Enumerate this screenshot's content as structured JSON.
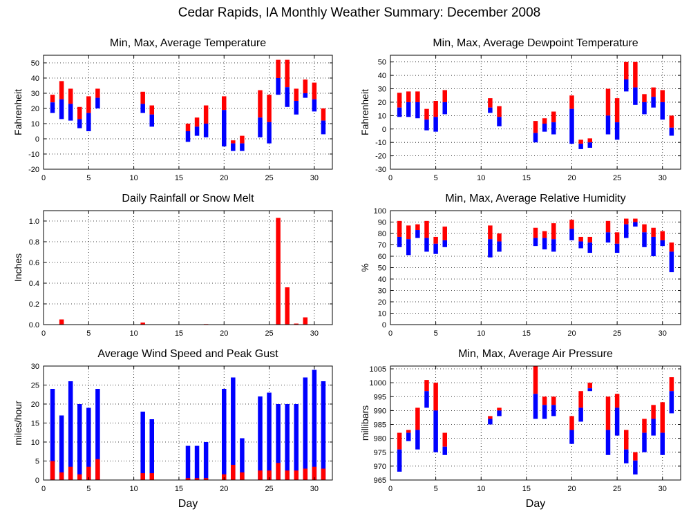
{
  "page_title": "Cedar Rapids, IA Monthly Weather Summary: December 2008",
  "colors": {
    "high": "#ff0000",
    "low": "#0000ff",
    "axis": "#000000",
    "grid": "#000000"
  },
  "chart_data": [
    {
      "id": "temp",
      "type": "floating-bar",
      "title": "Min, Max, Average Temperature",
      "xlabel": "",
      "ylabel": "Fahrenheit",
      "xlim": [
        0,
        32
      ],
      "ylim": [
        -20,
        55
      ],
      "xticks": [
        0,
        5,
        10,
        15,
        20,
        25,
        30
      ],
      "yticks": [
        -20,
        -10,
        0,
        10,
        20,
        30,
        40,
        50
      ],
      "grid": true,
      "days": [
        1,
        2,
        3,
        4,
        5,
        6,
        11,
        12,
        16,
        17,
        18,
        20,
        21,
        22,
        24,
        25,
        26,
        27,
        28,
        29,
        30,
        31
      ],
      "min": [
        17,
        13,
        12,
        7,
        5,
        20,
        17,
        8,
        -2,
        2,
        1,
        -5,
        -8,
        -8,
        1,
        -3,
        29,
        21,
        16,
        27,
        18,
        3
      ],
      "avg": [
        24,
        26,
        23,
        13,
        17,
        27,
        23,
        16,
        5,
        8,
        10,
        19,
        -3,
        -3,
        14,
        11,
        40,
        34,
        25,
        30,
        26,
        12
      ],
      "max": [
        29,
        38,
        33,
        21,
        28,
        33,
        31,
        22,
        10,
        14,
        22,
        28,
        -1,
        2,
        32,
        29,
        52,
        52,
        33,
        39,
        37,
        20
      ]
    },
    {
      "id": "dewpoint",
      "type": "floating-bar",
      "title": "Min, Max, Average Dewpoint Temperature",
      "xlabel": "",
      "ylabel": "Fahrenheit",
      "xlim": [
        0,
        32
      ],
      "ylim": [
        -30,
        55
      ],
      "xticks": [
        0,
        5,
        10,
        15,
        20,
        25,
        30
      ],
      "yticks": [
        -30,
        -20,
        -10,
        0,
        10,
        20,
        30,
        40,
        50
      ],
      "grid": true,
      "days": [
        1,
        2,
        3,
        4,
        5,
        6,
        11,
        12,
        16,
        17,
        18,
        20,
        21,
        22,
        24,
        25,
        26,
        27,
        28,
        29,
        30,
        31
      ],
      "min": [
        9,
        9,
        8,
        -1,
        -2,
        11,
        12,
        2,
        -10,
        -2,
        -4,
        -11,
        -15,
        -14,
        -4,
        -8,
        28,
        18,
        11,
        16,
        7,
        -5
      ],
      "avg": [
        16,
        20,
        20,
        7,
        9,
        20,
        16,
        9,
        -3,
        4,
        5,
        15,
        -11,
        -10,
        10,
        5,
        37,
        31,
        20,
        24,
        20,
        1
      ],
      "max": [
        27,
        28,
        28,
        15,
        21,
        29,
        23,
        17,
        6,
        8,
        13,
        25,
        -8,
        -7,
        30,
        23,
        50,
        50,
        26,
        31,
        29,
        10
      ]
    },
    {
      "id": "precip",
      "type": "bar",
      "title": "Daily Rainfall or Snow Melt",
      "xlabel": "",
      "ylabel": "Inches",
      "xlim": [
        0,
        32
      ],
      "ylim": [
        0,
        1.1
      ],
      "xticks": [
        0,
        5,
        10,
        15,
        20,
        25,
        30
      ],
      "yticks": [
        0.0,
        0.2,
        0.4,
        0.6,
        0.8,
        1.0
      ],
      "ytick_labels": [
        "0.0",
        "0.2",
        "0.4",
        "0.6",
        "0.8",
        "1.0"
      ],
      "grid": true,
      "days": [
        2,
        11,
        18,
        26,
        27,
        28,
        29
      ],
      "values": [
        0.05,
        0.02,
        0.005,
        1.03,
        0.36,
        0.01,
        0.07
      ]
    },
    {
      "id": "rh",
      "type": "floating-bar",
      "title": "Min, Max, Average Relative Humidity",
      "xlabel": "",
      "ylabel": "%",
      "xlim": [
        0,
        32
      ],
      "ylim": [
        0,
        100
      ],
      "xticks": [
        0,
        5,
        10,
        15,
        20,
        25,
        30
      ],
      "yticks": [
        0,
        10,
        20,
        30,
        40,
        50,
        60,
        70,
        80,
        90,
        100
      ],
      "grid": true,
      "days": [
        1,
        2,
        3,
        4,
        5,
        6,
        11,
        12,
        16,
        17,
        18,
        20,
        21,
        22,
        24,
        25,
        26,
        27,
        28,
        29,
        30,
        31
      ],
      "min": [
        68,
        61,
        76,
        64,
        62,
        68,
        59,
        64,
        69,
        66,
        64,
        74,
        67,
        63,
        72,
        63,
        76,
        86,
        68,
        60,
        69,
        46
      ],
      "avg": [
        77,
        75,
        83,
        76,
        71,
        74,
        75,
        73,
        76,
        76,
        75,
        84,
        73,
        72,
        81,
        71,
        88,
        90,
        81,
        77,
        74,
        64
      ],
      "max": [
        91,
        87,
        88,
        91,
        77,
        86,
        87,
        80,
        85,
        82,
        89,
        92,
        77,
        77,
        91,
        81,
        93,
        93,
        88,
        85,
        82,
        72
      ]
    },
    {
      "id": "wind",
      "type": "bar",
      "title": "Average Wind Speed and Peak Gust",
      "xlabel": "Day",
      "ylabel": "miles/hour",
      "xlim": [
        0,
        32
      ],
      "ylim": [
        0,
        30
      ],
      "xticks": [
        0,
        5,
        10,
        15,
        20,
        25,
        30
      ],
      "yticks": [
        0,
        5,
        10,
        15,
        20,
        25,
        30
      ],
      "grid": true,
      "days": [
        1,
        2,
        3,
        4,
        5,
        6,
        11,
        12,
        16,
        17,
        18,
        20,
        21,
        22,
        24,
        25,
        26,
        27,
        28,
        29,
        30,
        31
      ],
      "avg_speed": [
        5,
        2,
        3.5,
        1.5,
        3.5,
        5.5,
        1.8,
        1.8,
        0.5,
        0.5,
        0.5,
        1.5,
        4,
        2,
        2.5,
        2.5,
        4.5,
        2.5,
        2.5,
        3,
        3.5,
        3
      ],
      "peak_gust": [
        24,
        17,
        26,
        20,
        19,
        24,
        18,
        16,
        9,
        9,
        10,
        24,
        27,
        11,
        22,
        23,
        20,
        20,
        20,
        27,
        29,
        26
      ]
    },
    {
      "id": "pressure",
      "type": "floating-bar",
      "title": "Min, Max, Average Air Pressure",
      "xlabel": "Day",
      "ylabel": "millibars",
      "xlim": [
        0,
        32
      ],
      "ylim": [
        965,
        1006
      ],
      "xticks": [
        0,
        5,
        10,
        15,
        20,
        25,
        30
      ],
      "yticks": [
        965,
        970,
        975,
        980,
        985,
        990,
        995,
        1000,
        1005
      ],
      "grid": true,
      "days": [
        1,
        2,
        3,
        4,
        5,
        6,
        11,
        12,
        16,
        17,
        18,
        20,
        21,
        22,
        24,
        25,
        26,
        27,
        28,
        29,
        30,
        31
      ],
      "min": [
        968,
        979,
        976,
        991,
        975,
        974,
        985,
        988,
        987,
        987,
        988,
        978,
        986,
        997,
        974,
        981,
        971,
        967,
        975,
        981,
        974,
        989
      ],
      "avg": [
        976,
        982,
        983,
        997,
        990,
        977,
        987,
        990,
        996,
        992,
        992,
        983,
        991,
        998,
        983,
        991,
        976,
        972,
        982,
        987,
        982,
        997
      ],
      "max": [
        982,
        983,
        991,
        1001,
        1000,
        982,
        988,
        991,
        1006,
        995,
        995,
        988,
        997,
        1000,
        995,
        996,
        983,
        975,
        987,
        992,
        993,
        1002
      ]
    }
  ]
}
